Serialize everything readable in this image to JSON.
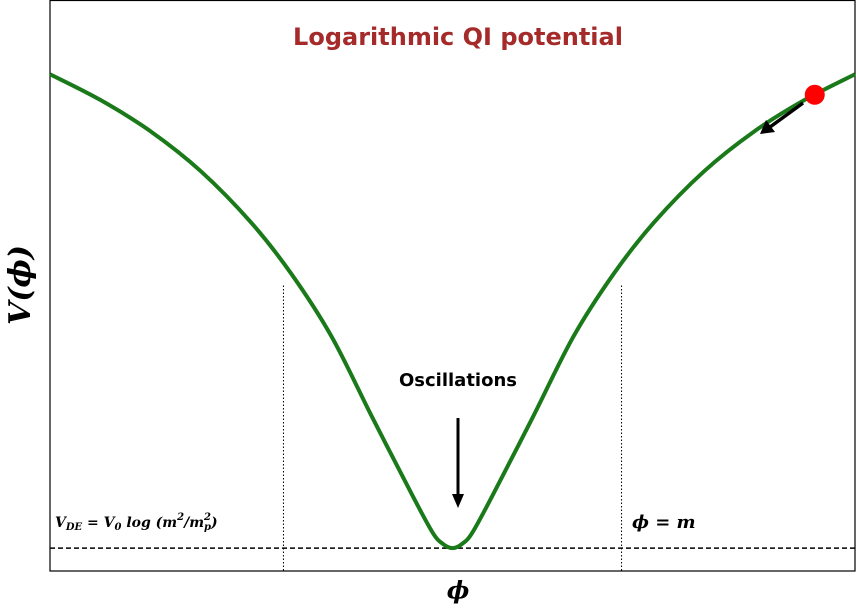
{
  "chart_data": {
    "type": "line",
    "title": "Logarithmic QI potential",
    "title_color": "#a52a2a",
    "y_label": "V(ϕ)",
    "x_label": "ϕ",
    "xlim": [
      -1,
      1
    ],
    "ylim": [
      0,
      1
    ],
    "color": "#1a7a1a",
    "x": [
      -1,
      -0.875,
      -0.75,
      -0.625,
      -0.5,
      -0.4,
      -0.3,
      -0.2,
      -0.1,
      -0.05,
      -0.025,
      0,
      0.025,
      0.05,
      0.1,
      0.2,
      0.3,
      0.4,
      0.5,
      0.625,
      0.75,
      0.875,
      1
    ],
    "values": [
      0.87,
      0.825,
      0.77,
      0.7,
      0.61,
      0.52,
      0.41,
      0.27,
      0.133,
      0.068,
      0.048,
      0.04,
      0.048,
      0.068,
      0.133,
      0.27,
      0.41,
      0.52,
      0.61,
      0.7,
      0.77,
      0.825,
      0.87
    ],
    "baseline": 0.04,
    "vlines": [
      {
        "x": -0.42,
        "top": 0.5
      },
      {
        "x": 0.42,
        "top": 0.5
      }
    ],
    "marker": {
      "x": 0.9,
      "y": 0.834,
      "color": "#ff0000"
    },
    "annotations": {
      "oscillations": "Oscillations",
      "phi_m": "ϕ = m",
      "formula": [
        "V",
        "DE",
        " = V",
        "0",
        " log (m",
        "2",
        "/m",
        "2",
        "p",
        ")"
      ]
    }
  }
}
